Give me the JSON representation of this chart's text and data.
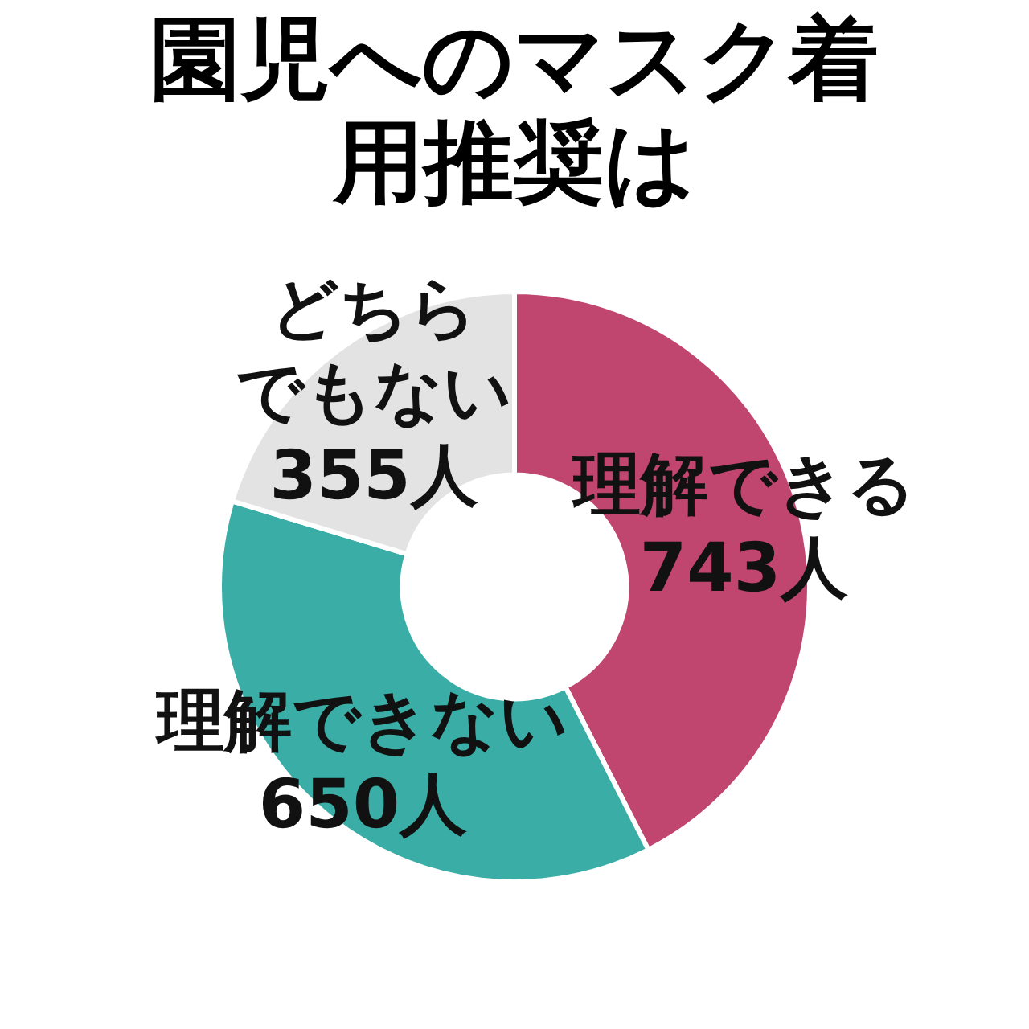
{
  "chart_data": {
    "type": "donut",
    "title": "園児へのマスク着用推奨は",
    "categories": [
      "理解できる",
      "理解できない",
      "どちらでもない"
    ],
    "values": [
      743,
      650,
      355
    ],
    "value_labels": [
      "743人",
      "650人",
      "355人"
    ],
    "colors": [
      "#c0456f",
      "#3aaea6",
      "#e3e3e3"
    ],
    "legend": false
  }
}
